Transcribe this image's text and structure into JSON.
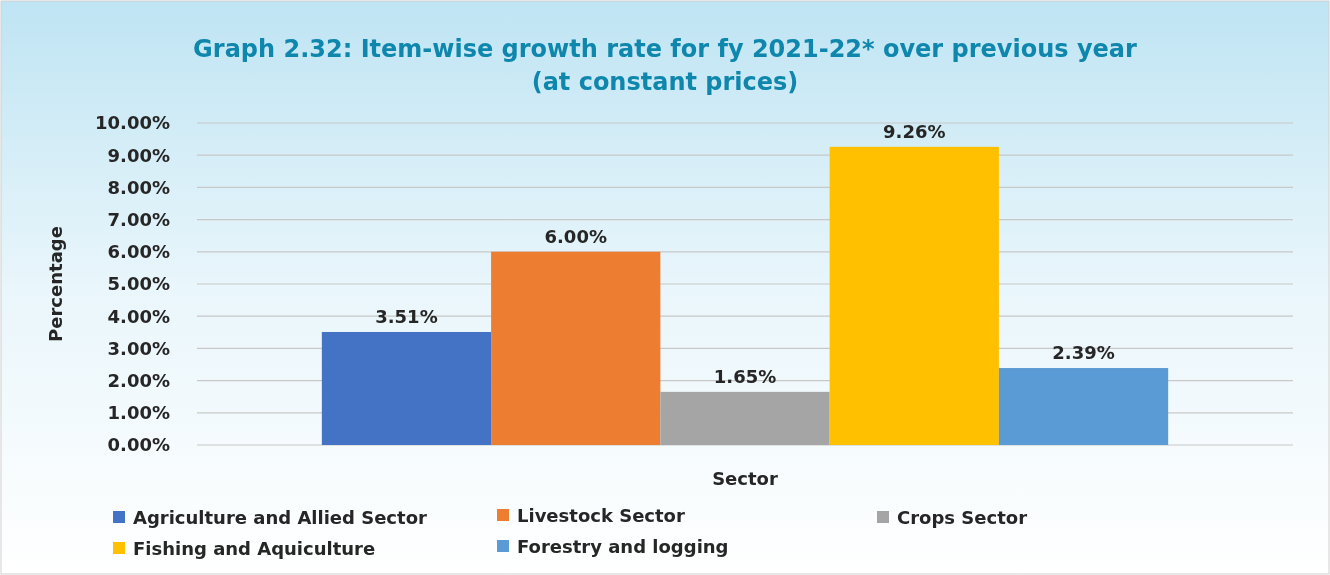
{
  "chart_data": {
    "type": "bar",
    "title": "Graph 2.32: Item-wise growth rate for fy 2021-22* over previous year\n(at constant prices)",
    "xlabel": "Sector",
    "ylabel": "Percentage",
    "categories": [
      null
    ],
    "series": [
      {
        "name": "Agriculture and Allied Sector",
        "color": "#4472c4",
        "values": [
          3.51
        ],
        "value_labels": [
          "3.51%"
        ]
      },
      {
        "name": "Livestock Sector",
        "color": "#ed7d31",
        "values": [
          6.0
        ],
        "value_labels": [
          "6.00%"
        ]
      },
      {
        "name": "Crops Sector",
        "color": "#a5a5a5",
        "values": [
          1.65
        ],
        "value_labels": [
          "1.65%"
        ]
      },
      {
        "name": "Fishing and Aquiculture",
        "color": "#ffc000",
        "values": [
          9.26
        ],
        "value_labels": [
          "9.26%"
        ]
      },
      {
        "name": "Forestry and logging",
        "color": "#5b9bd5",
        "values": [
          2.39
        ],
        "value_labels": [
          "2.39%"
        ]
      }
    ],
    "ylim": [
      0,
      10
    ],
    "yticks": [
      {
        "value": 0,
        "label": "0.00%"
      },
      {
        "value": 1,
        "label": "1.00%"
      },
      {
        "value": 2,
        "label": "2.00%"
      },
      {
        "value": 3,
        "label": "3.00%"
      },
      {
        "value": 4,
        "label": "4.00%"
      },
      {
        "value": 5,
        "label": "5.00%"
      },
      {
        "value": 6,
        "label": "6.00%"
      },
      {
        "value": 7,
        "label": "7.00%"
      },
      {
        "value": 8,
        "label": "8.00%"
      },
      {
        "value": 9,
        "label": "9.00%"
      },
      {
        "value": 10,
        "label": "10.00%"
      }
    ],
    "grid": "y",
    "legend": "bottom"
  }
}
